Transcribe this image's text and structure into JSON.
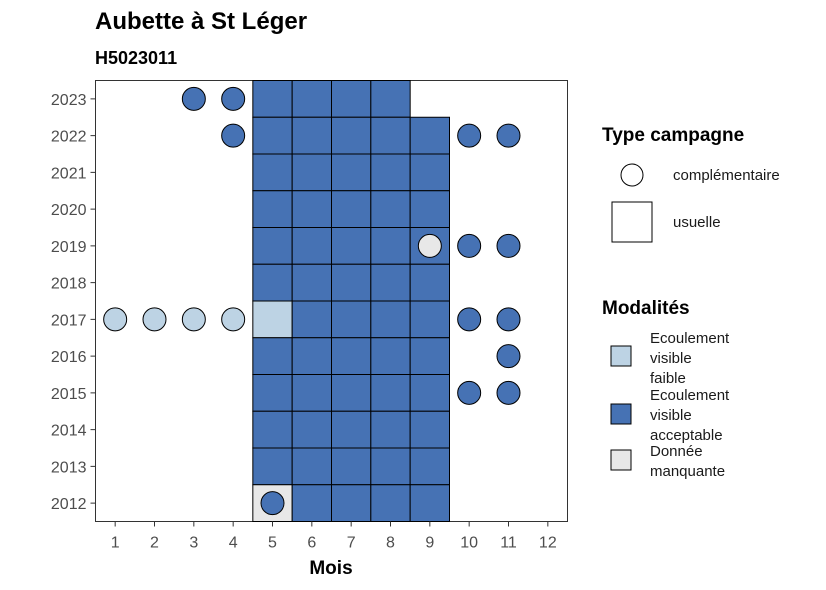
{
  "chart_data": {
    "type": "heatmap",
    "title": "Aubette à St Léger",
    "subtitle": "H5023011",
    "xlabel": "Mois",
    "ylabel": "",
    "x_ticks": [
      1,
      2,
      3,
      4,
      5,
      6,
      7,
      8,
      9,
      10,
      11,
      12
    ],
    "y_ticks": [
      2012,
      2013,
      2014,
      2015,
      2016,
      2017,
      2018,
      2019,
      2020,
      2021,
      2022,
      2023
    ],
    "xlim": [
      0.5,
      12.5
    ],
    "ylim": [
      2011.5,
      2023.5
    ],
    "modalites": [
      {
        "key": "faible",
        "label_lines": [
          "Ecoulement",
          "visible",
          "faible"
        ],
        "color": "#bdd3e4"
      },
      {
        "key": "acceptable",
        "label_lines": [
          "Ecoulement",
          "visible",
          "acceptable"
        ],
        "color": "#4672b4"
      },
      {
        "key": "manquante",
        "label_lines": [
          "Donnée",
          "manquante"
        ],
        "color": "#e8e8e8"
      }
    ],
    "type_campagne": [
      {
        "key": "complementaire",
        "label": "complémentaire",
        "shape": "circle"
      },
      {
        "key": "usuelle",
        "label": "usuelle",
        "shape": "square"
      }
    ],
    "legend_titles": {
      "type": "Type campagne",
      "modalites": "Modalités"
    },
    "usuelle": [
      {
        "year": 2023,
        "months": [
          5,
          6,
          7,
          8
        ],
        "modalite": "acceptable"
      },
      {
        "year": 2022,
        "months": [
          5,
          6,
          7,
          8,
          9
        ],
        "modalite": "acceptable"
      },
      {
        "year": 2021,
        "months": [
          5,
          6,
          7,
          8,
          9
        ],
        "modalite": "acceptable"
      },
      {
        "year": 2020,
        "months": [
          5,
          6,
          7,
          8,
          9
        ],
        "modalite": "acceptable"
      },
      {
        "year": 2019,
        "months": [
          5,
          6,
          7,
          8,
          9
        ],
        "modalite": "acceptable"
      },
      {
        "year": 2018,
        "months": [
          5,
          6,
          7,
          8,
          9
        ],
        "modalite": "acceptable"
      },
      {
        "year": 2017,
        "months": [
          5
        ],
        "modalite": "faible"
      },
      {
        "year": 2017,
        "months": [
          6,
          7,
          8,
          9
        ],
        "modalite": "acceptable"
      },
      {
        "year": 2016,
        "months": [
          5,
          6,
          7,
          8,
          9
        ],
        "modalite": "acceptable"
      },
      {
        "year": 2015,
        "months": [
          5,
          6,
          7,
          8,
          9
        ],
        "modalite": "acceptable"
      },
      {
        "year": 2014,
        "months": [
          5,
          6,
          7,
          8,
          9
        ],
        "modalite": "acceptable"
      },
      {
        "year": 2013,
        "months": [
          5,
          6,
          7,
          8,
          9
        ],
        "modalite": "acceptable"
      },
      {
        "year": 2012,
        "months": [
          5
        ],
        "modalite": "manquante"
      },
      {
        "year": 2012,
        "months": [
          6,
          7,
          8,
          9
        ],
        "modalite": "acceptable"
      }
    ],
    "complementaire": [
      {
        "year": 2023,
        "month": 3,
        "modalite": "acceptable"
      },
      {
        "year": 2023,
        "month": 4,
        "modalite": "acceptable"
      },
      {
        "year": 2022,
        "month": 4,
        "modalite": "acceptable"
      },
      {
        "year": 2022,
        "month": 10,
        "modalite": "acceptable"
      },
      {
        "year": 2022,
        "month": 11,
        "modalite": "acceptable"
      },
      {
        "year": 2019,
        "month": 9,
        "modalite": "manquante"
      },
      {
        "year": 2019,
        "month": 10,
        "modalite": "acceptable"
      },
      {
        "year": 2019,
        "month": 11,
        "modalite": "acceptable"
      },
      {
        "year": 2017,
        "month": 1,
        "modalite": "faible"
      },
      {
        "year": 2017,
        "month": 2,
        "modalite": "faible"
      },
      {
        "year": 2017,
        "month": 3,
        "modalite": "faible"
      },
      {
        "year": 2017,
        "month": 4,
        "modalite": "faible"
      },
      {
        "year": 2017,
        "month": 10,
        "modalite": "acceptable"
      },
      {
        "year": 2017,
        "month": 11,
        "modalite": "acceptable"
      },
      {
        "year": 2016,
        "month": 11,
        "modalite": "acceptable"
      },
      {
        "year": 2015,
        "month": 10,
        "modalite": "acceptable"
      },
      {
        "year": 2015,
        "month": 11,
        "modalite": "acceptable"
      },
      {
        "year": 2012,
        "month": 5,
        "modalite": "acceptable"
      }
    ]
  }
}
